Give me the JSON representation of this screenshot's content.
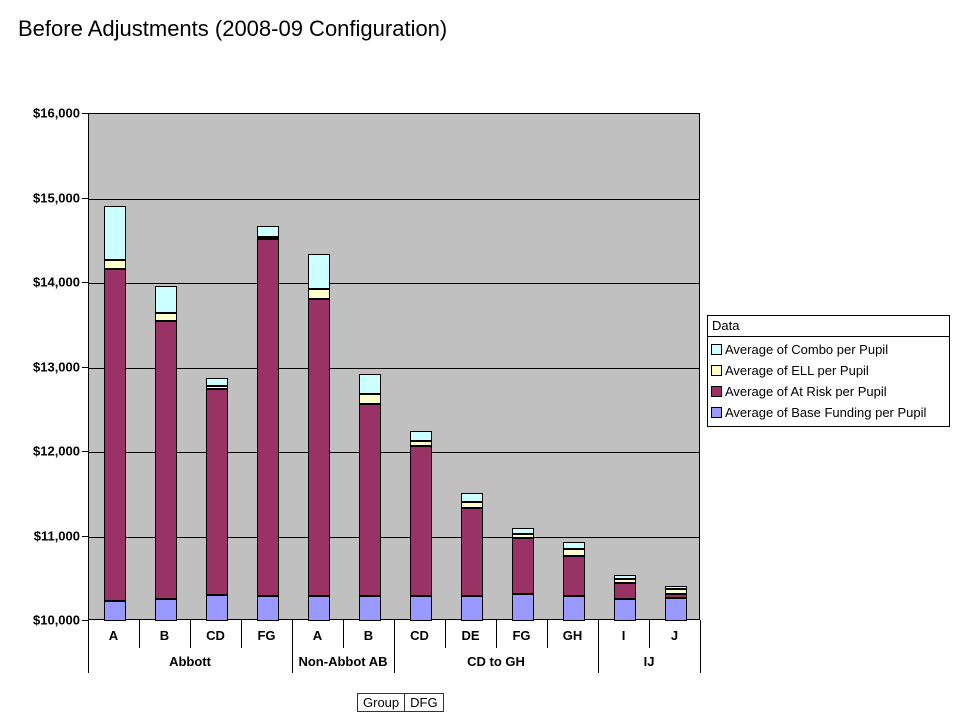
{
  "title": "Before Adjustments (2008-09 Configuration)",
  "colors": {
    "plot_bg": "#C0C0C0",
    "axis": "#000000",
    "combo": "#CCFFFF",
    "ell": "#FFFFCC",
    "at_risk": "#993366",
    "base": "#9999FF"
  },
  "legend": {
    "header": "Data",
    "items": [
      {
        "label": "Average of Combo per Pupil",
        "color": "#CCFFFF"
      },
      {
        "label": "Average of ELL per Pupil",
        "color": "#FFFFCC"
      },
      {
        "label": "Average of At Risk per Pupil",
        "color": "#993366"
      },
      {
        "label": "Average of Base Funding per Pupil",
        "color": "#9999FF"
      }
    ]
  },
  "field_buttons": {
    "group": "Group",
    "dfg": "DFG"
  },
  "chart_data": {
    "type": "bar",
    "stacked": true,
    "ylim": [
      10000,
      16000
    ],
    "ytick_interval": 1000,
    "yticks": [
      10000,
      11000,
      12000,
      13000,
      14000,
      15000,
      16000
    ],
    "ytick_labels": [
      "$10,000",
      "$11,000",
      "$12,000",
      "$13,000",
      "$14,000",
      "$15,000",
      "$16,000"
    ],
    "grid": true,
    "legend_position": "right",
    "categories": [
      "A",
      "B",
      "CD",
      "FG",
      "A",
      "B",
      "CD",
      "DE",
      "FG",
      "GH",
      "I",
      "J"
    ],
    "groups": [
      {
        "label": "Abbott",
        "span": 4
      },
      {
        "label": "Non-Abbot AB",
        "span": 2
      },
      {
        "label": "CD to GH",
        "span": 4
      },
      {
        "label": "IJ",
        "span": 2
      }
    ],
    "series": [
      {
        "key": "base",
        "name": "Average of Base Funding per Pupil",
        "color": "#9999FF",
        "values": [
          10240,
          10260,
          10310,
          10290,
          10290,
          10300,
          10290,
          10300,
          10320,
          10290,
          10260,
          10270
        ]
      },
      {
        "key": "at-risk",
        "name": "Average of At Risk per Pupil",
        "color": "#993366",
        "values": [
          3930,
          3290,
          2430,
          4230,
          3520,
          2270,
          1780,
          1040,
          660,
          480,
          190,
          50
        ]
      },
      {
        "key": "ell",
        "name": "Average of ELL per Pupil",
        "color": "#FFFFCC",
        "values": [
          100,
          100,
          40,
          30,
          120,
          120,
          60,
          70,
          50,
          80,
          50,
          60
        ]
      },
      {
        "key": "combo",
        "name": "Average of Combo per Pupil",
        "color": "#CCFFFF",
        "values": [
          640,
          320,
          90,
          120,
          410,
          230,
          120,
          100,
          70,
          80,
          40,
          40
        ]
      }
    ]
  }
}
